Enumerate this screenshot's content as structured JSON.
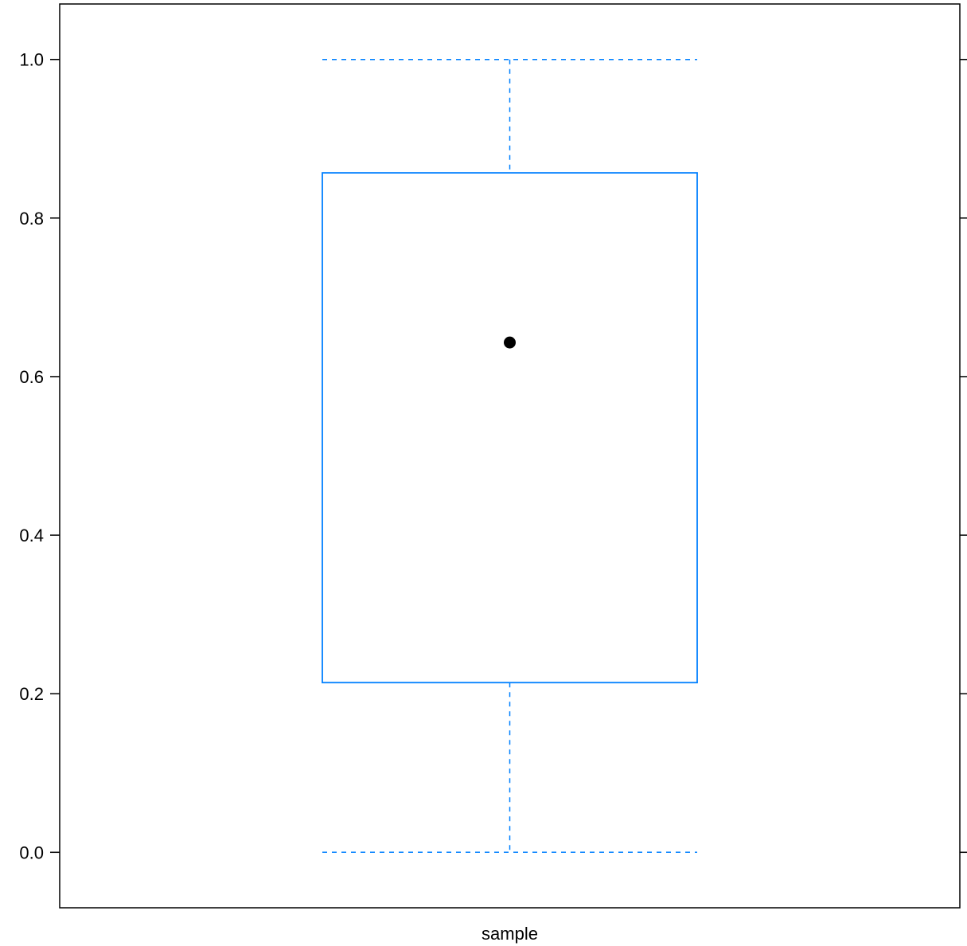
{
  "chart_data": {
    "type": "box",
    "categories": [
      "sample"
    ],
    "series": [
      {
        "min": 0.0,
        "q1": 0.214,
        "median": 0.643,
        "q3": 0.857,
        "max": 1.0
      }
    ],
    "ylim": [
      -0.07,
      1.07
    ],
    "yticks": [
      0.0,
      0.2,
      0.4,
      0.6,
      0.8,
      1.0
    ],
    "ytick_labels": [
      "0.0",
      "0.2",
      "0.4",
      "0.6",
      "0.8",
      "1.0"
    ],
    "xlabel": "",
    "ylabel": "",
    "title": "",
    "grid": false,
    "colors": {
      "box": "#0080ff",
      "median_dot": "#000000",
      "frame": "#000000"
    }
  }
}
